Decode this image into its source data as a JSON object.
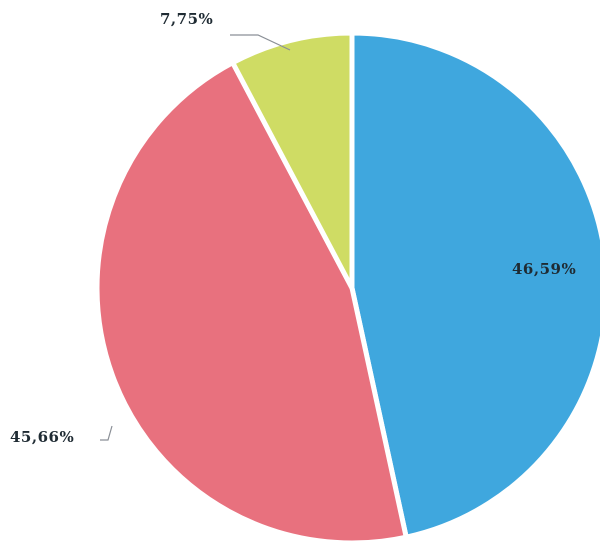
{
  "chart_data": {
    "type": "pie",
    "title": "",
    "start_angle_deg": 0,
    "direction": "clockwise",
    "slices": [
      {
        "value": 46.59,
        "label": "46,59%",
        "color": "#3fa7de"
      },
      {
        "value": 45.66,
        "label": "45,66%",
        "color": "#e8717e"
      },
      {
        "value": 7.75,
        "label": "7,75%",
        "color": "#cfdc64"
      }
    ],
    "legend": "none",
    "label_style": "data labels with leader lines"
  }
}
